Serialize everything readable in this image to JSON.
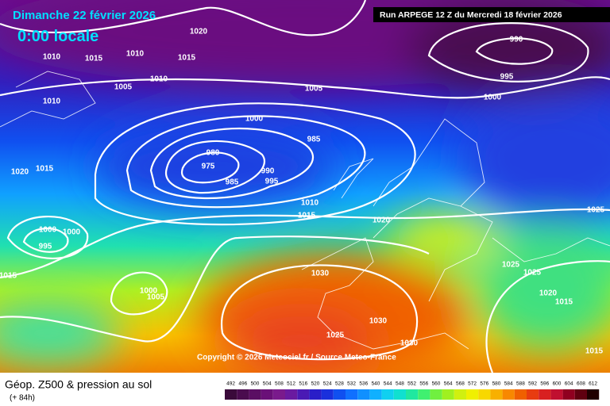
{
  "header": {
    "date": "Dimanche 22 février 2026",
    "time": "0:00 locale",
    "run": "Run ARPEGE 12 Z du Mercredi 18 février 2026"
  },
  "copyright": "Copyright © 2026 Meteociel.fr / Source Meteo-France",
  "footer": {
    "title": "Géop. Z500 & pression au sol",
    "lead": "(+ 84h)"
  },
  "isobar_labels": [
    1010,
    1015,
    1010,
    1005,
    1000,
    985,
    980,
    975,
    985,
    990,
    995,
    1010,
    1015,
    1020,
    1000,
    1000,
    995,
    1015,
    1000,
    1005,
    1030,
    1025,
    1030,
    1030,
    1025,
    1025,
    1020,
    1015,
    990,
    995,
    1000,
    1025,
    1015,
    1020,
    1015,
    1010,
    1020,
    1015,
    1010,
    1005
  ],
  "colorbar": {
    "levels": [
      492,
      496,
      500,
      504,
      508,
      512,
      516,
      520,
      524,
      528,
      532,
      536,
      540,
      544,
      548,
      552,
      556,
      560,
      564,
      568,
      572,
      576,
      580,
      584,
      588,
      592,
      596,
      600,
      604,
      608,
      612
    ],
    "colors": [
      "#3a0a3a",
      "#4a0c4e",
      "#5a0e63",
      "#6a1078",
      "#7a1a8c",
      "#6a1aa0",
      "#4a1ab4",
      "#2a1ec8",
      "#1a30dc",
      "#1050f0",
      "#1070ff",
      "#1090ff",
      "#10b0ff",
      "#10d0f0",
      "#10e0d0",
      "#20e8a0",
      "#40f070",
      "#70f040",
      "#a0f020",
      "#d0f010",
      "#f0f000",
      "#f8d800",
      "#f8b000",
      "#f88800",
      "#f06000",
      "#e83c10",
      "#d82020",
      "#c01030",
      "#900020",
      "#600010",
      "#200000"
    ]
  }
}
